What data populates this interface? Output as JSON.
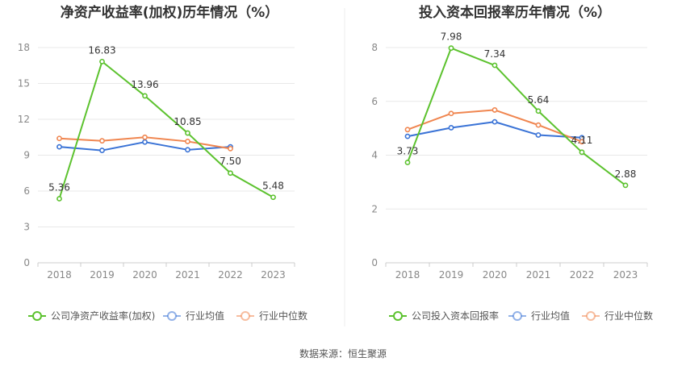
{
  "source_label": "数据来源：恒生聚源",
  "chart_data": [
    {
      "type": "line",
      "title": "净资产收益率(加权)历年情况（%）",
      "categories": [
        "2018",
        "2019",
        "2020",
        "2021",
        "2022",
        "2023"
      ],
      "ylim": [
        0,
        18
      ],
      "yticks": [
        0,
        3,
        6,
        9,
        12,
        15,
        18
      ],
      "grid": true,
      "legend_position": "bottom",
      "series": [
        {
          "name": "公司净资产收益率(加权)",
          "color": "#5cc22e",
          "values": [
            5.36,
            16.83,
            13.96,
            10.85,
            7.5,
            5.48
          ],
          "labels": [
            "5.36",
            "16.83",
            "13.96",
            "10.85",
            "7.50",
            "5.48"
          ]
        },
        {
          "name": "行业均值",
          "color": "#3a73d6",
          "values": [
            9.7,
            9.4,
            10.1,
            9.45,
            9.7,
            null
          ]
        },
        {
          "name": "行业中位数",
          "color": "#f08650",
          "values": [
            10.4,
            10.2,
            10.5,
            10.15,
            9.55,
            null
          ]
        }
      ]
    },
    {
      "type": "line",
      "title": "投入资本回报率历年情况（%）",
      "categories": [
        "2018",
        "2019",
        "2020",
        "2021",
        "2022",
        "2023"
      ],
      "ylim": [
        0,
        8
      ],
      "yticks": [
        0,
        2,
        4,
        6,
        8
      ],
      "grid": true,
      "legend_position": "bottom",
      "series": [
        {
          "name": "公司投入资本回报率",
          "color": "#5cc22e",
          "values": [
            3.73,
            7.98,
            7.34,
            5.64,
            4.11,
            2.88
          ],
          "labels": [
            "3.73",
            "7.98",
            "7.34",
            "5.64",
            "4.11",
            "2.88"
          ]
        },
        {
          "name": "行业均值",
          "color": "#3a73d6",
          "values": [
            4.7,
            5.02,
            5.24,
            4.75,
            4.65,
            null
          ]
        },
        {
          "name": "行业中位数",
          "color": "#f08650",
          "values": [
            4.95,
            5.55,
            5.68,
            5.12,
            4.5,
            null
          ]
        }
      ]
    }
  ]
}
